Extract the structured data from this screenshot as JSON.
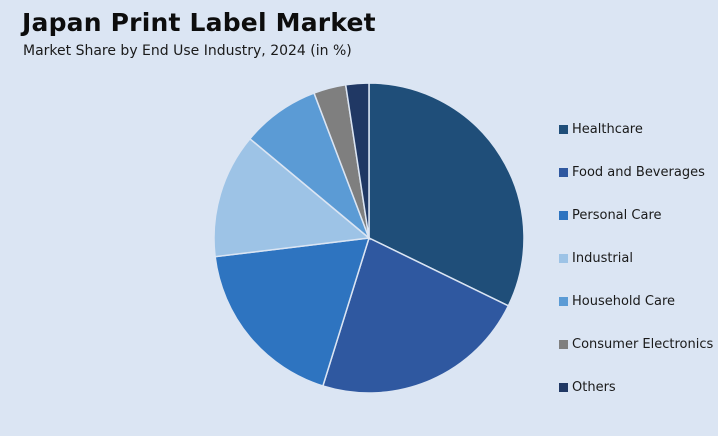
{
  "header": {
    "title": "Japan Print Label Market",
    "subtitle": "Market Share by End Use Industry, 2024 (in %)"
  },
  "chart_data": {
    "type": "pie",
    "title": "Japan Print Label Market",
    "subtitle": "Market Share by End Use Industry, 2024 (in %)",
    "legend_position": "right",
    "slices": [
      {
        "label": "Healthcare",
        "value": 33.5,
        "color": "#1f4e79"
      },
      {
        "label": "Food and Beverages",
        "value": 23.5,
        "color": "#2f58a0"
      },
      {
        "label": "Personal Care",
        "value": 19.0,
        "color": "#2e74c0"
      },
      {
        "label": "Industrial",
        "value": 13.5,
        "color": "#9dc3e6"
      },
      {
        "label": "Household Care",
        "value": 8.5,
        "color": "#5b9bd5"
      },
      {
        "label": "Consumer Electronics",
        "value": 3.5,
        "color": "#7f7f7f"
      },
      {
        "label": "Others",
        "value": 2.5,
        "color": "#203864"
      }
    ]
  }
}
